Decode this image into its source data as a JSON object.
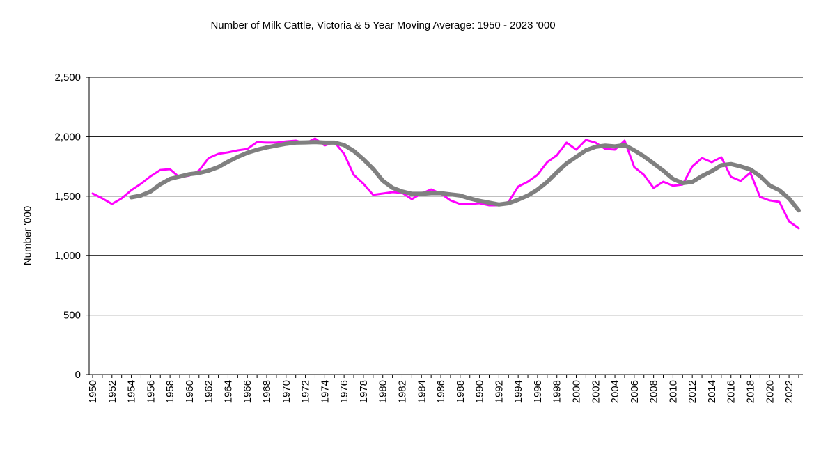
{
  "chart_data": {
    "type": "line",
    "title": "Number of Milk Cattle, Victoria & 5 Year Moving Average: 1950 - 2023 '000",
    "xlabel": "",
    "ylabel": "Number '000",
    "ylim": [
      0,
      2500
    ],
    "yticks": [
      "0",
      "500",
      "1,000",
      "1,500",
      "2,000",
      "2,500"
    ],
    "ytick_values": [
      0,
      500,
      1000,
      1500,
      2000,
      2500
    ],
    "xlim": [
      1950,
      2023
    ],
    "grid": "horizontal",
    "legend": "none",
    "series": [
      {
        "name": "Number of Milk Cattle",
        "color": "#ff00ff",
        "start_year": 1950,
        "values": [
          1522,
          1481,
          1434,
          1481,
          1551,
          1604,
          1668,
          1721,
          1727,
          1657,
          1674,
          1715,
          1821,
          1856,
          1868,
          1885,
          1897,
          1955,
          1950,
          1950,
          1961,
          1967,
          1944,
          1985,
          1926,
          1955,
          1856,
          1680,
          1604,
          1511,
          1522,
          1534,
          1528,
          1475,
          1522,
          1557,
          1522,
          1464,
          1434,
          1434,
          1440,
          1423,
          1423,
          1452,
          1581,
          1622,
          1680,
          1786,
          1844,
          1950,
          1891,
          1973,
          1950,
          1897,
          1891,
          1967,
          1745,
          1680,
          1569,
          1622,
          1587,
          1598,
          1750,
          1821,
          1786,
          1827,
          1663,
          1628,
          1698,
          1493,
          1464,
          1452,
          1288,
          1230
        ]
      },
      {
        "name": "5 Year Moving Average",
        "color": "#808080",
        "start_year": 1954,
        "values": [
          1490,
          1505,
          1540,
          1600,
          1645,
          1665,
          1685,
          1695,
          1715,
          1745,
          1790,
          1830,
          1865,
          1890,
          1910,
          1925,
          1940,
          1950,
          1952,
          1955,
          1950,
          1950,
          1930,
          1880,
          1810,
          1730,
          1630,
          1570,
          1540,
          1520,
          1520,
          1525,
          1525,
          1515,
          1505,
          1480,
          1460,
          1445,
          1430,
          1440,
          1470,
          1505,
          1555,
          1620,
          1700,
          1775,
          1830,
          1885,
          1915,
          1925,
          1918,
          1930,
          1885,
          1835,
          1775,
          1715,
          1645,
          1610,
          1620,
          1670,
          1710,
          1760,
          1770,
          1750,
          1725,
          1670,
          1590,
          1550,
          1480,
          1380
        ]
      }
    ]
  }
}
